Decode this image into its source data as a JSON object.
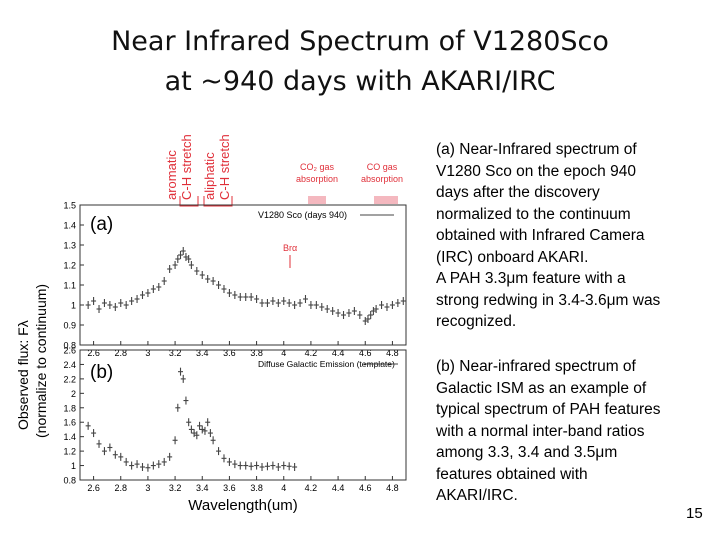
{
  "slide": {
    "title_line1": "Near Infrared Spectrum of V1280Sco",
    "title_line2": "at ~940 days with AKARI/IRC",
    "page_number": "15"
  },
  "desc_a": {
    "lines": [
      "(a) Near-Infrared spectrum of",
      "V1280 Sco on the epoch 940",
      "days after the discovery",
      "normalized to the continuum",
      "obtained with Infrared Camera",
      "(IRC) onboard AKARI.",
      "A PAH 3.3μm feature with a",
      "strong redwing in 3.4-3.6μm was",
      "recognized."
    ]
  },
  "desc_b": {
    "lines": [
      "(b) Near-infrared spectrum of",
      "Galactic ISM as an example of",
      "typical spectrum of PAH features",
      "with a normal inter-band ratios",
      "among 3.3, 3.4 and 3.5μm",
      "features obtained with",
      "AKARI/IRC."
    ]
  },
  "annotations": {
    "aromatic_l1": "aromatic",
    "aromatic_l2": "C-H stretch",
    "aliphatic_l1": "aliphatic",
    "aliphatic_l2": "C-H stretch",
    "co2_l1": "CO₂ gas",
    "co2_l2": "absorption",
    "co_l1": "CO gas",
    "co_l2": "absorption",
    "bralpha": "Brα",
    "band_color": "#f4b8bf",
    "label_color": "#e0303a"
  },
  "colors": {
    "data": "#444444",
    "axis": "#333333"
  },
  "chart_data": [
    {
      "type": "scatter",
      "panel_label": "(a)",
      "legend": "V1280 Sco (days 940)",
      "xlabel": "",
      "xlim": [
        2.5,
        4.9
      ],
      "ylim": [
        0.8,
        1.5
      ],
      "xticks": [
        2.6,
        2.8,
        3.0,
        3.2,
        3.4,
        3.6,
        3.8,
        4.0,
        4.2,
        4.4,
        4.6,
        4.8
      ],
      "xtick_labels": [
        "2.6",
        "2.8",
        "3",
        "3.2",
        "3.4",
        "3.6",
        "3.8",
        "4",
        "4.2",
        "4.4",
        "4.6",
        "4.8"
      ],
      "yticks": [
        0.8,
        0.9,
        1.0,
        1.1,
        1.2,
        1.3,
        1.4,
        1.5
      ],
      "ytick_labels": [
        "0.8",
        "0.9",
        "1",
        "1.1",
        "1.2",
        "1.3",
        "1.4",
        "1.5"
      ],
      "x": [
        2.56,
        2.6,
        2.64,
        2.68,
        2.72,
        2.76,
        2.8,
        2.84,
        2.88,
        2.92,
        2.96,
        3.0,
        3.04,
        3.08,
        3.12,
        3.16,
        3.2,
        3.22,
        3.24,
        3.26,
        3.28,
        3.3,
        3.32,
        3.36,
        3.4,
        3.44,
        3.48,
        3.52,
        3.56,
        3.6,
        3.64,
        3.68,
        3.72,
        3.76,
        3.8,
        3.84,
        3.88,
        3.92,
        3.96,
        4.0,
        4.04,
        4.08,
        4.12,
        4.16,
        4.2,
        4.24,
        4.28,
        4.32,
        4.36,
        4.4,
        4.44,
        4.48,
        4.52,
        4.56,
        4.6,
        4.62,
        4.64,
        4.66,
        4.68,
        4.72,
        4.76,
        4.8,
        4.84,
        4.88
      ],
      "y": [
        1.0,
        1.02,
        0.98,
        1.01,
        1.0,
        0.99,
        1.01,
        1.0,
        1.02,
        1.03,
        1.05,
        1.06,
        1.08,
        1.09,
        1.12,
        1.18,
        1.2,
        1.23,
        1.25,
        1.27,
        1.24,
        1.23,
        1.2,
        1.17,
        1.15,
        1.13,
        1.12,
        1.1,
        1.08,
        1.06,
        1.05,
        1.04,
        1.04,
        1.04,
        1.03,
        1.01,
        1.01,
        1.02,
        1.01,
        1.02,
        1.01,
        1.0,
        1.01,
        1.03,
        1.0,
        1.0,
        0.99,
        0.98,
        0.97,
        0.96,
        0.95,
        0.96,
        0.97,
        0.95,
        0.92,
        0.93,
        0.95,
        0.97,
        0.98,
        1.0,
        0.99,
        1.0,
        1.01,
        1.02
      ]
    },
    {
      "type": "scatter",
      "panel_label": "(b)",
      "legend": "Diffuse Galactic Emission (template)",
      "xlabel": "Wavelength(um)",
      "xlim": [
        2.5,
        4.9
      ],
      "ylim": [
        0.8,
        2.6
      ],
      "xticks": [
        2.6,
        2.8,
        3.0,
        3.2,
        3.4,
        3.6,
        3.8,
        4.0,
        4.2,
        4.4,
        4.6,
        4.8
      ],
      "xtick_labels": [
        "2.6",
        "2.8",
        "3",
        "3.2",
        "3.4",
        "3.6",
        "3.8",
        "4",
        "4.2",
        "4.4",
        "4.6",
        "4.8"
      ],
      "yticks": [
        0.8,
        1.0,
        1.2,
        1.4,
        1.6,
        1.8,
        2.0,
        2.2,
        2.4,
        2.6
      ],
      "ytick_labels": [
        "0.8",
        "1",
        "1.2",
        "1.4",
        "1.6",
        "1.8",
        "2",
        "2.2",
        "2.4",
        "2.6"
      ],
      "x": [
        2.56,
        2.6,
        2.64,
        2.68,
        2.72,
        2.76,
        2.8,
        2.84,
        2.88,
        2.92,
        2.96,
        3.0,
        3.04,
        3.08,
        3.12,
        3.16,
        3.2,
        3.22,
        3.24,
        3.26,
        3.28,
        3.3,
        3.32,
        3.34,
        3.36,
        3.38,
        3.4,
        3.42,
        3.44,
        3.46,
        3.48,
        3.52,
        3.56,
        3.6,
        3.64,
        3.68,
        3.72,
        3.76,
        3.8,
        3.84,
        3.88,
        3.92,
        3.96,
        4.0,
        4.04,
        4.08
      ],
      "y": [
        1.55,
        1.45,
        1.3,
        1.2,
        1.25,
        1.15,
        1.12,
        1.05,
        1.0,
        1.02,
        0.98,
        0.97,
        1.0,
        1.02,
        1.05,
        1.12,
        1.35,
        1.8,
        2.3,
        2.2,
        1.9,
        1.6,
        1.5,
        1.45,
        1.42,
        1.55,
        1.5,
        1.48,
        1.6,
        1.45,
        1.35,
        1.2,
        1.1,
        1.05,
        1.02,
        1.0,
        1.0,
        0.99,
        1.0,
        0.98,
        0.99,
        1.0,
        0.98,
        1.0,
        0.99,
        0.98
      ]
    }
  ],
  "ylabel_line1": "Observed flux: Fλ",
  "ylabel_line2": "(normalize to continuum)"
}
